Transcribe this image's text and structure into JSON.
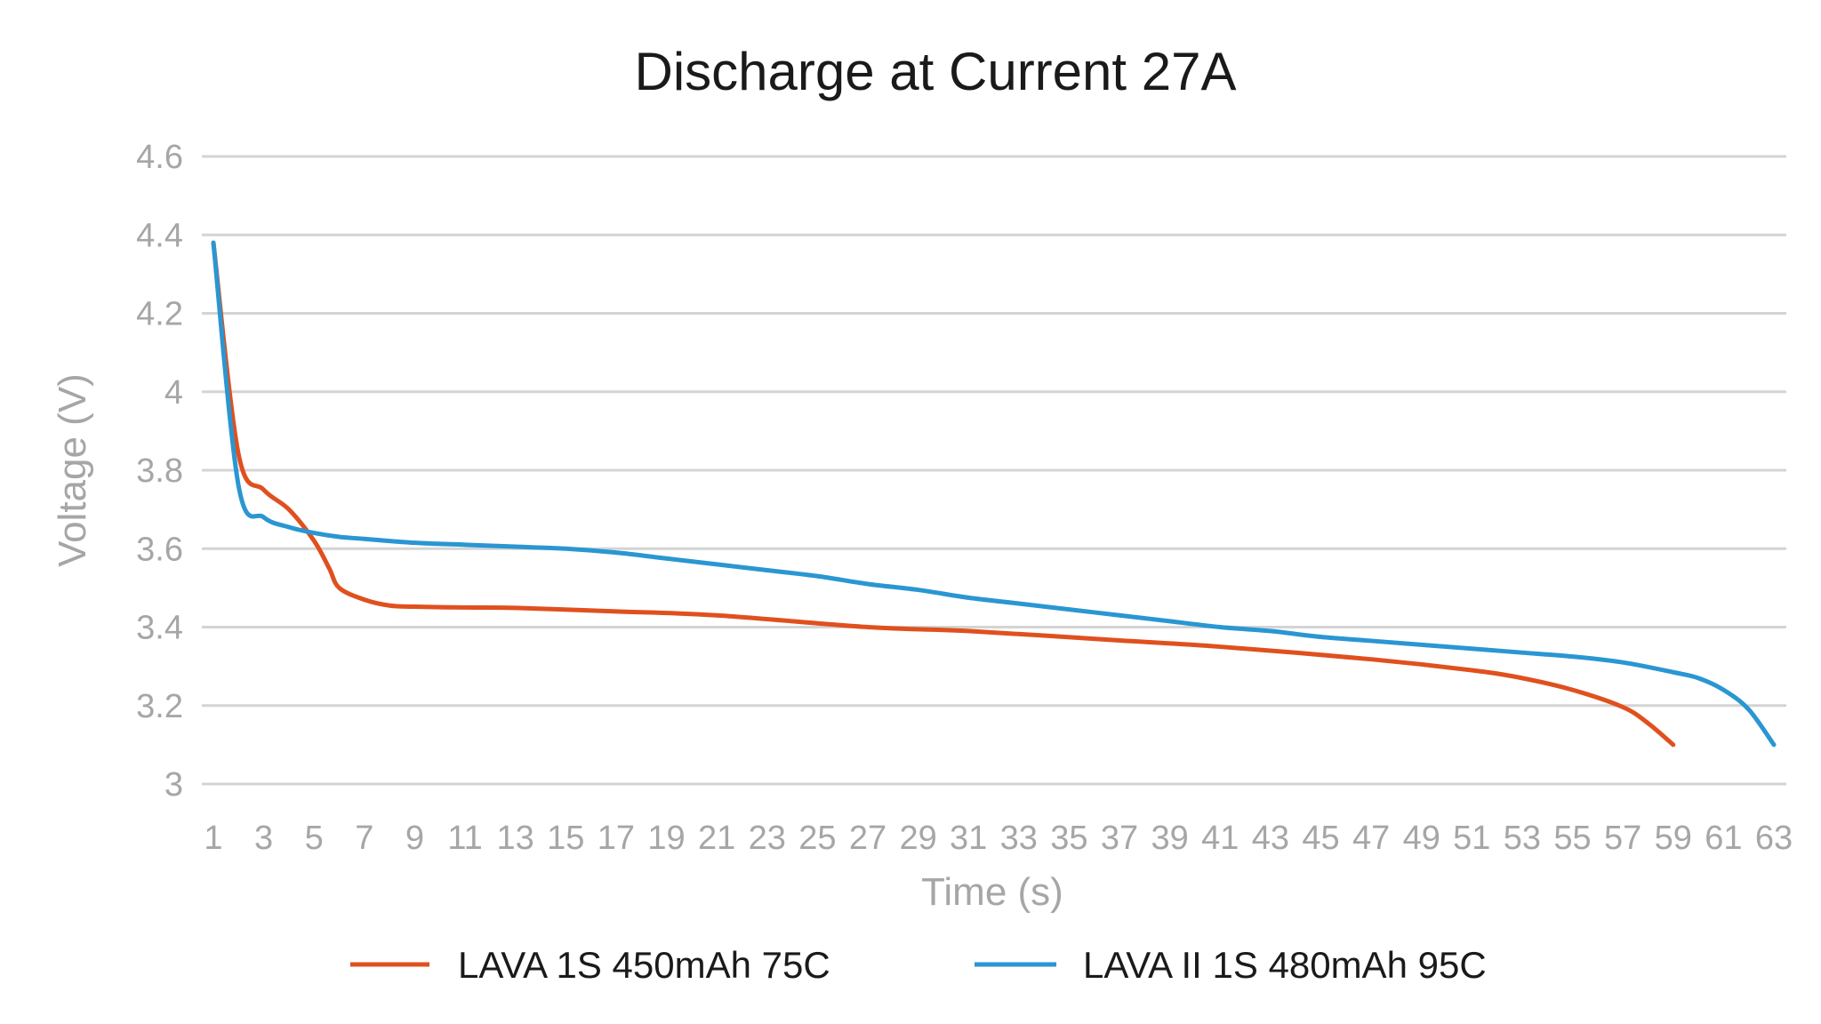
{
  "chart_data": {
    "type": "line",
    "title": "Discharge at Current 27A",
    "xlabel": "Time (s)",
    "ylabel": "Voltage (V)",
    "x_ticks": [
      1,
      3,
      5,
      7,
      9,
      11,
      13,
      15,
      17,
      19,
      21,
      23,
      25,
      27,
      29,
      31,
      33,
      35,
      37,
      39,
      41,
      43,
      45,
      47,
      49,
      51,
      53,
      55,
      57,
      59,
      61,
      63
    ],
    "y_ticks": [
      "3",
      "3.2",
      "3.4",
      "3.6",
      "3.8",
      "4",
      "4.2",
      "4.4",
      "4.6"
    ],
    "xlim": [
      1,
      63
    ],
    "ylim": [
      3,
      4.6
    ],
    "grid": "horizontal",
    "legend_position": "bottom",
    "series": [
      {
        "name": "LAVA 1S 450mAh 75C",
        "color": "#E0501E",
        "x": [
          1,
          2,
          3,
          4,
          5,
          5.6,
          6,
          7,
          8,
          9,
          11,
          13,
          17,
          21,
          27,
          31,
          37,
          41,
          47,
          51,
          53,
          55,
          57,
          58,
          59
        ],
        "y": [
          4.38,
          3.84,
          3.75,
          3.7,
          3.62,
          3.55,
          3.5,
          3.47,
          3.455,
          3.452,
          3.45,
          3.449,
          3.44,
          3.43,
          3.4,
          3.39,
          3.366,
          3.35,
          3.318,
          3.29,
          3.27,
          3.24,
          3.196,
          3.155,
          3.1
        ]
      },
      {
        "name": "LAVA II 1S 480mAh 95C",
        "color": "#2A96D2",
        "x": [
          1,
          2,
          3,
          4,
          5,
          6,
          7,
          9,
          11,
          13,
          15,
          17,
          19,
          21,
          23,
          25,
          27,
          29,
          31,
          33,
          35,
          37,
          39,
          41,
          43,
          45,
          47,
          49,
          51,
          53,
          55,
          57,
          59,
          60,
          61,
          62,
          63
        ],
        "y": [
          4.38,
          3.76,
          3.68,
          3.655,
          3.64,
          3.63,
          3.625,
          3.615,
          3.61,
          3.605,
          3.6,
          3.59,
          3.575,
          3.56,
          3.545,
          3.53,
          3.51,
          3.495,
          3.475,
          3.46,
          3.445,
          3.43,
          3.415,
          3.4,
          3.39,
          3.375,
          3.365,
          3.355,
          3.345,
          3.335,
          3.325,
          3.31,
          3.285,
          3.27,
          3.24,
          3.19,
          3.1
        ]
      }
    ]
  }
}
